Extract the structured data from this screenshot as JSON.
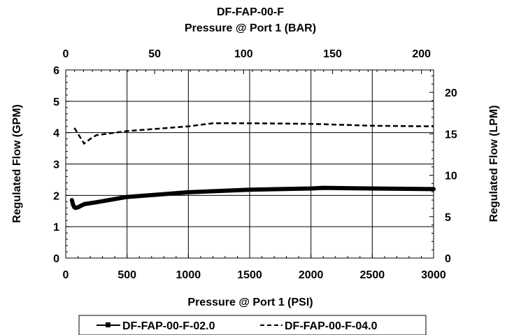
{
  "chart_data": {
    "type": "line",
    "title": "DF-FAP-00-F",
    "top_axis_label": "Pressure @ Port 1 (BAR)",
    "xlabel": "Pressure @ Port 1 (PSI)",
    "ylabel": "Regulated Flow (GPM)",
    "y2label": "Regulated Flow (LPM)",
    "xlim": [
      0,
      3000
    ],
    "ylim": [
      0,
      6
    ],
    "x2lim": [
      0,
      206.8
    ],
    "y2lim": [
      0,
      22.71
    ],
    "x_ticks": [
      0,
      500,
      1000,
      1500,
      2000,
      2500,
      3000
    ],
    "y_ticks": [
      0,
      1,
      2,
      3,
      4,
      5,
      6
    ],
    "x2_ticks": [
      0,
      50,
      100,
      150,
      200
    ],
    "y2_ticks": [
      0,
      5,
      10,
      15,
      20
    ],
    "grid": true,
    "legend_position": "bottom",
    "series": [
      {
        "name": "DF-FAP-00-F-02.0",
        "style": "solid-thick",
        "color": "#000000",
        "x": [
          50,
          60,
          70,
          80,
          100,
          120,
          150,
          250,
          500,
          1000,
          1500,
          2000,
          2100,
          2500,
          3000
        ],
        "y": [
          1.85,
          1.7,
          1.62,
          1.6,
          1.62,
          1.66,
          1.72,
          1.78,
          1.95,
          2.1,
          2.18,
          2.22,
          2.24,
          2.22,
          2.2
        ]
      },
      {
        "name": "DF-FAP-00-F-04.0",
        "style": "dashed",
        "color": "#000000",
        "x": [
          70,
          150,
          200,
          250,
          500,
          1000,
          1200,
          1500,
          2000,
          2500,
          3000
        ],
        "y": [
          4.15,
          3.65,
          3.8,
          3.92,
          4.05,
          4.2,
          4.3,
          4.3,
          4.28,
          4.22,
          4.2
        ]
      }
    ]
  }
}
